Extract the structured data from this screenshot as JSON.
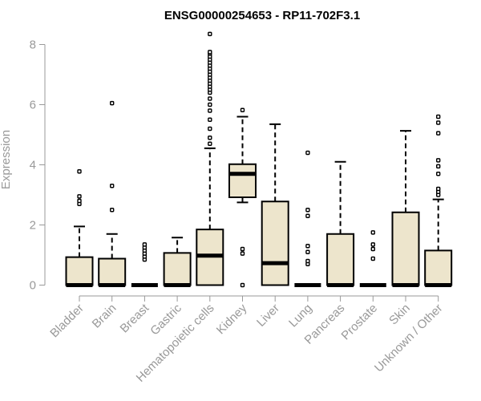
{
  "chart_data": {
    "type": "boxplot",
    "title": "ENSG00000254653 - RP11-702F3.1",
    "xlabel": "",
    "ylabel": "Expression",
    "ylim": [
      0,
      8.4
    ],
    "yticks": [
      0,
      2,
      4,
      6,
      8
    ],
    "grid": false,
    "colors": {
      "box_fill": "#ede5cc",
      "stroke": "#000000",
      "axis": "#999999"
    },
    "categories": [
      "Bladder",
      "Brain",
      "Breast",
      "Gastric",
      "Hematopoietic cells",
      "Kidney",
      "Liver",
      "Lung",
      "Pancreas",
      "Prostate",
      "Skin",
      "Unknown / Other"
    ],
    "boxes": [
      {
        "q1": 0,
        "median": 0,
        "q3": 0.93,
        "whisker_low": 0,
        "whisker_high": 1.95,
        "outliers": [
          2.7,
          2.8,
          2.95,
          3.78
        ]
      },
      {
        "q1": 0,
        "median": 0,
        "q3": 0.88,
        "whisker_low": 0,
        "whisker_high": 1.7,
        "outliers": [
          2.5,
          3.3,
          6.05
        ]
      },
      {
        "q1": 0,
        "median": 0,
        "q3": 0,
        "whisker_low": 0,
        "whisker_high": 0,
        "outliers": [
          0.85,
          0.95,
          1.05,
          1.15,
          1.25,
          1.35
        ]
      },
      {
        "q1": 0,
        "median": 0,
        "q3": 1.07,
        "whisker_low": 0,
        "whisker_high": 1.58,
        "outliers": []
      },
      {
        "q1": 0,
        "median": 0.98,
        "q3": 1.85,
        "whisker_low": 0,
        "whisker_high": 4.55,
        "outliers": [
          4.7,
          4.9,
          5.2,
          5.5,
          5.8,
          6.0,
          6.2,
          6.4,
          6.5,
          6.6,
          6.7,
          6.8,
          6.9,
          7.0,
          7.1,
          7.2,
          7.3,
          7.4,
          7.5,
          7.6,
          7.7,
          7.75,
          8.35
        ]
      },
      {
        "q1": 2.92,
        "median": 3.7,
        "q3": 4.02,
        "whisker_low": 2.75,
        "whisker_high": 5.6,
        "outliers": [
          0,
          1.05,
          1.2,
          5.82
        ]
      },
      {
        "q1": 0,
        "median": 0.73,
        "q3": 2.78,
        "whisker_low": 0,
        "whisker_high": 5.35,
        "outliers": []
      },
      {
        "q1": 0,
        "median": 0,
        "q3": 0,
        "whisker_low": 0,
        "whisker_high": 0,
        "outliers": [
          0.7,
          0.8,
          1.1,
          1.3,
          2.3,
          2.5,
          4.4
        ]
      },
      {
        "q1": 0,
        "median": 0,
        "q3": 1.7,
        "whisker_low": 0,
        "whisker_high": 4.1,
        "outliers": []
      },
      {
        "q1": 0,
        "median": 0,
        "q3": 0,
        "whisker_low": 0,
        "whisker_high": 0,
        "outliers": [
          0.88,
          1.2,
          1.35,
          1.75
        ]
      },
      {
        "q1": 0,
        "median": 0,
        "q3": 2.42,
        "whisker_low": 0,
        "whisker_high": 5.13,
        "outliers": []
      },
      {
        "q1": 0,
        "median": 0,
        "q3": 1.15,
        "whisker_low": 0,
        "whisker_high": 2.85,
        "outliers": [
          3.0,
          3.1,
          3.2,
          3.7,
          3.95,
          4.15,
          5.05,
          5.4,
          5.6
        ]
      }
    ]
  }
}
